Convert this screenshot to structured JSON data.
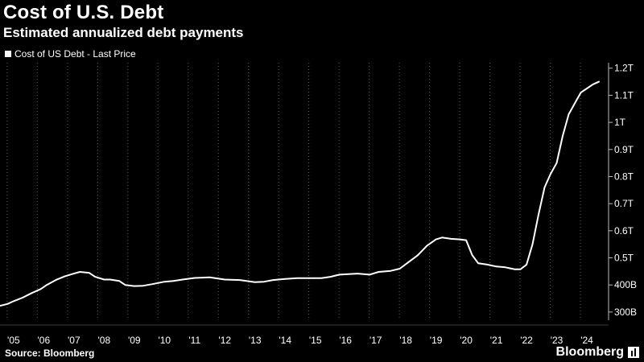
{
  "header": {
    "title": "Cost of U.S. Debt",
    "subtitle": "Estimated annualized debt payments"
  },
  "legend": {
    "label": "Cost of US Debt - Last Price"
  },
  "footer": {
    "source": "Source: Bloomberg",
    "brand": "Bloomberg"
  },
  "colors": {
    "background": "#000000",
    "line": "#ffffff",
    "grid": "#5a5a5a"
  },
  "chart_data": {
    "type": "line",
    "title": "Cost of U.S. Debt",
    "subtitle": "Estimated annualized debt payments",
    "xlabel": "",
    "ylabel": "",
    "ylim": [
      270000000000.0,
      1220000000000.0
    ],
    "xlim": [
      2004.55,
      2024.72
    ],
    "grid": "vertical dotted",
    "legend_position": "top-left",
    "y_axis_side": "right",
    "x_ticks": [
      "'05",
      "'06",
      "'07",
      "'08",
      "'09",
      "'10",
      "'11",
      "'12",
      "'13",
      "'14",
      "'15",
      "'16",
      "'17",
      "'18",
      "'19",
      "'20",
      "'21",
      "'22",
      "'23",
      "'24"
    ],
    "x_tick_values": [
      2005.0,
      2006.0,
      2007.0,
      2008.0,
      2009.0,
      2010.0,
      2011.0,
      2012.0,
      2013.0,
      2014.0,
      2015.0,
      2016.0,
      2017.0,
      2018.0,
      2019.0,
      2020.0,
      2021.0,
      2022.0,
      2023.0,
      2024.0
    ],
    "y_ticks": [
      "300B",
      "400B",
      "0.5T",
      "0.6T",
      "0.7T",
      "0.8T",
      "0.9T",
      "1T",
      "1.1T",
      "1.2T"
    ],
    "y_tick_values": [
      300000000000.0,
      400000000000.0,
      500000000000.0,
      600000000000.0,
      700000000000.0,
      800000000000.0,
      900000000000.0,
      1000000000000.0,
      1100000000000.0,
      1200000000000.0
    ],
    "series": [
      {
        "name": "Cost of US Debt - Last Price",
        "x": [
          2004.55,
          2004.8,
          2005.0,
          2005.3,
          2005.6,
          2005.9,
          2006.1,
          2006.4,
          2006.7,
          2007.0,
          2007.2,
          2007.5,
          2007.7,
          2008.0,
          2008.2,
          2008.5,
          2008.7,
          2009.0,
          2009.3,
          2009.6,
          2010.0,
          2010.3,
          2010.6,
          2011.0,
          2011.5,
          2012.0,
          2012.5,
          2013.0,
          2013.3,
          2013.6,
          2014.0,
          2014.4,
          2014.8,
          2015.2,
          2015.5,
          2015.8,
          2016.1,
          2016.4,
          2016.8,
          2017.1,
          2017.5,
          2017.8,
          2018.1,
          2018.4,
          2018.7,
          2019.0,
          2019.2,
          2019.5,
          2019.8,
          2020.0,
          2020.2,
          2020.4,
          2020.7,
          2021.0,
          2021.3,
          2021.6,
          2021.8,
          2022.0,
          2022.2,
          2022.4,
          2022.6,
          2022.8,
          2023.0,
          2023.2,
          2023.4,
          2023.6,
          2023.8,
          2024.0,
          2024.2,
          2024.4
        ],
        "values": [
          323000000000.0,
          330000000000.0,
          340000000000.0,
          353000000000.0,
          370000000000.0,
          385000000000.0,
          400000000000.0,
          418000000000.0,
          432000000000.0,
          442000000000.0,
          448000000000.0,
          445000000000.0,
          430000000000.0,
          420000000000.0,
          420000000000.0,
          415000000000.0,
          400000000000.0,
          396000000000.0,
          397000000000.0,
          403000000000.0,
          412000000000.0,
          415000000000.0,
          420000000000.0,
          426000000000.0,
          428000000000.0,
          420000000000.0,
          418000000000.0,
          410000000000.0,
          412000000000.0,
          418000000000.0,
          422000000000.0,
          425000000000.0,
          425000000000.0,
          425000000000.0,
          430000000000.0,
          438000000000.0,
          440000000000.0,
          442000000000.0,
          438000000000.0,
          448000000000.0,
          452000000000.0,
          460000000000.0,
          485000000000.0,
          510000000000.0,
          545000000000.0,
          568000000000.0,
          575000000000.0,
          570000000000.0,
          568000000000.0,
          565000000000.0,
          510000000000.0,
          480000000000.0,
          475000000000.0,
          468000000000.0,
          465000000000.0,
          458000000000.0,
          458000000000.0,
          475000000000.0,
          550000000000.0,
          660000000000.0,
          760000000000.0,
          810000000000.0,
          850000000000.0,
          950000000000.0,
          1030000000000.0,
          1070000000000.0,
          1110000000000.0,
          1125000000000.0,
          1140000000000.0,
          1150000000000.0
        ]
      }
    ]
  }
}
